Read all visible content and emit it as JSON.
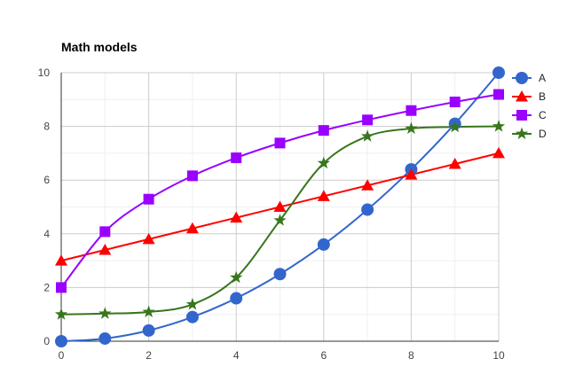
{
  "chart_data": {
    "type": "line",
    "title": "Math models",
    "xlabel": "",
    "ylabel": "",
    "x": [
      0,
      1,
      2,
      3,
      4,
      5,
      6,
      7,
      8,
      9,
      10
    ],
    "xlim": [
      0,
      10
    ],
    "ylim": [
      0,
      10
    ],
    "x_ticks": [
      0,
      2,
      4,
      6,
      8,
      10
    ],
    "y_ticks": [
      0,
      2,
      4,
      6,
      8,
      10
    ],
    "grid": true,
    "smooth": true,
    "legend_position": "right",
    "series": [
      {
        "name": "A",
        "color": "#3366cc",
        "marker": "circle",
        "values": [
          0,
          0.1,
          0.4,
          0.9,
          1.6,
          2.5,
          3.6,
          4.9,
          6.4,
          8.1,
          10
        ]
      },
      {
        "name": "B",
        "color": "#ff0000",
        "marker": "triangle",
        "values": [
          3,
          3.4,
          3.8,
          4.2,
          4.6,
          5.0,
          5.4,
          5.8,
          6.2,
          6.6,
          7.0
        ]
      },
      {
        "name": "C",
        "color": "#9900ff",
        "marker": "square",
        "values": [
          2,
          4.08,
          5.29,
          6.16,
          6.83,
          7.38,
          7.85,
          8.24,
          8.59,
          8.91,
          9.19
        ]
      },
      {
        "name": "D",
        "color": "#38761d",
        "marker": "star",
        "values": [
          1.0,
          1.03,
          1.09,
          1.37,
          2.37,
          4.5,
          6.63,
          7.63,
          7.92,
          7.98,
          8.0
        ]
      }
    ]
  }
}
